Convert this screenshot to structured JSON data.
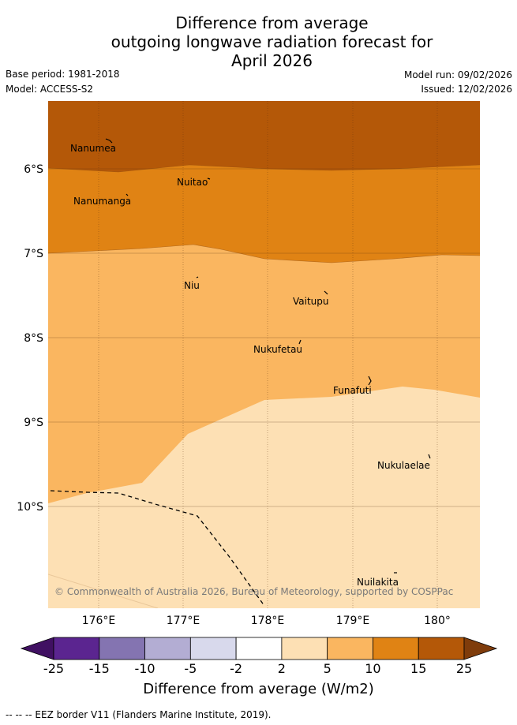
{
  "title": {
    "line1": "Difference from average",
    "line2": "outgoing longwave radiation forecast for",
    "line3": "April 2026"
  },
  "meta": {
    "base_period": "Base period: 1981-2018",
    "model": "Model: ACCESS-S2",
    "model_run": "Model run: 09/02/2026",
    "issued": "Issued: 12/02/2026"
  },
  "map": {
    "lat_labels": [
      "6°S",
      "7°S",
      "8°S",
      "9°S",
      "10°S"
    ],
    "lon_labels": [
      "176°E",
      "177°E",
      "178°E",
      "179°E",
      "180°"
    ],
    "places": [
      "Nanumea",
      "Nuitao",
      "Nanumanga",
      "Niu",
      "Vaitupu",
      "Nukufetau",
      "Funafuti",
      "Nukulaelae",
      "Nuilakita"
    ],
    "copyright": "© Commonwealth of Australia 2026, Bureau of Meteorology, supported by COSPPac"
  },
  "colorbar": {
    "ticks": [
      "-25",
      "-15",
      "-10",
      "-5",
      "-2",
      "2",
      "5",
      "10",
      "15",
      "25"
    ],
    "colors": [
      "#5b2590",
      "#8474b1",
      "#b3add3",
      "#d8d9ec",
      "#ffffff",
      "#fde0b4",
      "#fab660",
      "#e08314",
      "#b45808"
    ],
    "extend_low_color": "#401062",
    "extend_high_color": "#7f3c0b",
    "title": "Difference from average (W/m2)"
  },
  "footnote": "--  --  -- EEZ border V11 (Flanders Marine Institute, 2019).",
  "colors": {
    "band_25": "#b45808",
    "band_15": "#e08314",
    "band_10": "#fab660",
    "band_5": "#fde0b4"
  }
}
